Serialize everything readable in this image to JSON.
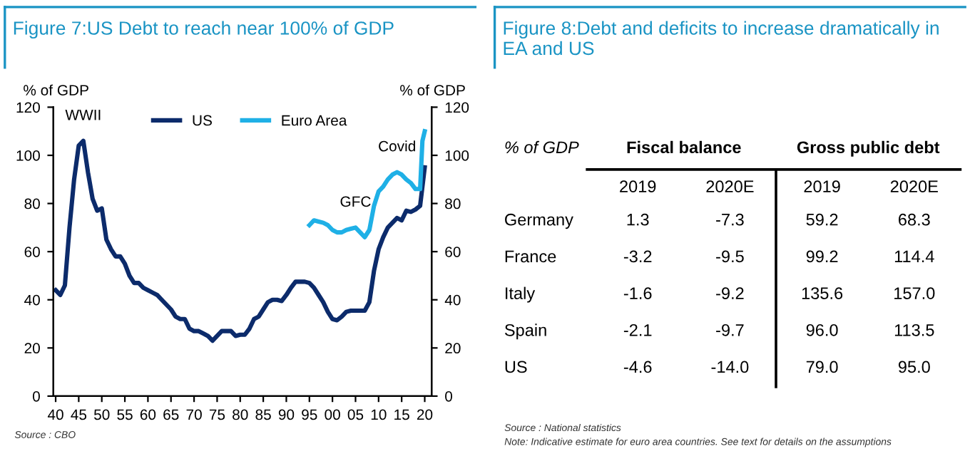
{
  "chart_data": [
    {
      "type": "line",
      "title": "Figure 7:US Debt to reach near 100% of GDP",
      "ylabel": "% of GDP",
      "y2label": "% of GDP",
      "xlim": [
        1939.5,
        2021.5
      ],
      "xticks": [
        {
          "value": 1940,
          "label": "40"
        },
        {
          "value": 1945,
          "label": "45"
        },
        {
          "value": 1950,
          "label": "50"
        },
        {
          "value": 1955,
          "label": "55"
        },
        {
          "value": 1960,
          "label": "60"
        },
        {
          "value": 1965,
          "label": "65"
        },
        {
          "value": 1970,
          "label": "70"
        },
        {
          "value": 1975,
          "label": "75"
        },
        {
          "value": 1980,
          "label": "80"
        },
        {
          "value": 1985,
          "label": "85"
        },
        {
          "value": 1990,
          "label": "90"
        },
        {
          "value": 1995,
          "label": "95"
        },
        {
          "value": 2000,
          "label": "00"
        },
        {
          "value": 2005,
          "label": "05"
        },
        {
          "value": 2010,
          "label": "10"
        },
        {
          "value": 2015,
          "label": "15"
        },
        {
          "value": 2020,
          "label": "20"
        }
      ],
      "ylim": [
        0,
        120
      ],
      "yticks": [
        0,
        20,
        40,
        60,
        80,
        100,
        120
      ],
      "y2lim": [
        0,
        120
      ],
      "y2ticks": [
        0,
        20,
        40,
        60,
        80,
        100,
        120
      ],
      "legend": "top",
      "grid": false,
      "marker": "none",
      "line_style": "solid",
      "series": [
        {
          "name": "US",
          "color": "#0c2b6b",
          "x": [
            1940,
            1941,
            1942,
            1943,
            1944,
            1945,
            1946,
            1947,
            1948,
            1949,
            1950,
            1951,
            1952,
            1953,
            1954,
            1955,
            1956,
            1957,
            1958,
            1959,
            1960,
            1961,
            1962,
            1963,
            1964,
            1965,
            1966,
            1967,
            1968,
            1969,
            1970,
            1971,
            1972,
            1973,
            1974,
            1975,
            1976,
            1977,
            1978,
            1979,
            1980,
            1981,
            1982,
            1983,
            1984,
            1985,
            1986,
            1987,
            1988,
            1989,
            1990,
            1991,
            1992,
            1993,
            1994,
            1995,
            1996,
            1997,
            1998,
            1999,
            2000,
            2001,
            2002,
            2003,
            2004,
            2005,
            2006,
            2007,
            2008,
            2009,
            2010,
            2011,
            2012,
            2013,
            2014,
            2015,
            2016,
            2017,
            2018,
            2019,
            2020
          ],
          "values": [
            44,
            42,
            46,
            70,
            90,
            104,
            106,
            93,
            82,
            77,
            78,
            65,
            61,
            58,
            58,
            55,
            50,
            47,
            47,
            45,
            44,
            43,
            42,
            40,
            38,
            36,
            33,
            32,
            32,
            28,
            27,
            27,
            26,
            25,
            23,
            25,
            27,
            27,
            27,
            25,
            25.5,
            25.5,
            28,
            32,
            33,
            36,
            39,
            40,
            40,
            39.5,
            42,
            45,
            47.5,
            47.5,
            47.5,
            47,
            45,
            42,
            39,
            35,
            32,
            31.5,
            33,
            35,
            35.5,
            35.5,
            35.5,
            35.5,
            39,
            52,
            61,
            66,
            70,
            72,
            74,
            73,
            77,
            76.5,
            77.5,
            79,
            95
          ]
        },
        {
          "name": "Euro Area",
          "color": "#1fb0e6",
          "axis": "y2",
          "x": [
            1995,
            1996,
            1997,
            1998,
            1999,
            2000,
            2001,
            2002,
            2003,
            2004,
            2005,
            2006,
            2007,
            2008,
            2009,
            2010,
            2011,
            2012,
            2013,
            2014,
            2015,
            2016,
            2017,
            2018,
            2019,
            2019.5,
            2020
          ],
          "values": [
            71,
            73,
            72.5,
            72,
            71,
            69,
            68,
            68,
            69,
            69.5,
            70,
            68,
            66,
            69,
            79,
            85,
            87,
            90,
            92,
            93,
            92,
            90,
            88.5,
            86,
            86,
            106,
            110
          ]
        }
      ],
      "annotations": [
        {
          "text": "WWII",
          "x": 1946,
          "y": 106
        },
        {
          "text": "GFC",
          "x": 2005,
          "y": 70
        },
        {
          "text": "Covid",
          "x": 2014,
          "y": 93
        },
        "Source : CBO"
      ]
    },
    {
      "type": "other",
      "title": "Figure 8:Debt and deficits to increase dramatically in EA and US",
      "annotations": [
        "% of GDP",
        "Fiscal balance",
        "Gross public debt",
        "2019",
        "2020E",
        "2019",
        "2020E",
        "Germany",
        "1.3",
        "-7.3",
        "59.2",
        "68.3",
        "France",
        "-3.2",
        "-9.5",
        "99.2",
        "114.4",
        "Italy",
        "-1.6",
        "-9.2",
        "135.6",
        "157.0",
        "Spain",
        "-2.1",
        "-9.7",
        "96.0",
        "113.5",
        "US",
        "-4.6",
        "-14.0",
        "79.0",
        "95.0",
        "Source : National statistics",
        "Note: Indicative estimate for euro area countries. See text for details on the assumptions"
      ]
    }
  ]
}
